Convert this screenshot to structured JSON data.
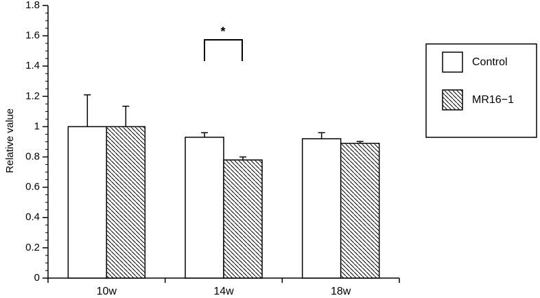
{
  "chart_data": {
    "type": "bar",
    "categories": [
      "10w",
      "14w",
      "18w"
    ],
    "series": [
      {
        "name": "Control",
        "values": [
          1.0,
          0.93,
          0.92
        ],
        "errors": [
          0.21,
          0.03,
          0.04
        ],
        "fill": "#ffffff"
      },
      {
        "name": "MR16−1",
        "values": [
          1.0,
          0.78,
          0.89
        ],
        "errors": [
          0.135,
          0.02,
          0.012
        ],
        "fill": "hatch"
      }
    ],
    "title": "",
    "xlabel": "",
    "ylabel": "Relative value",
    "ylim": [
      0,
      1.8
    ],
    "yticks": [
      "0",
      "0.2",
      "0.4",
      "0.6",
      "0.8",
      "1",
      "1.2",
      "1.4",
      "1.6",
      "1.8"
    ],
    "legend_position": "right",
    "annotations": [
      {
        "text": "*",
        "category": "14w",
        "type": "significance-bracket"
      }
    ],
    "grid": false,
    "colors": {
      "axis": "#000000",
      "bar_stroke": "#000000",
      "hatch": "#000000"
    }
  }
}
